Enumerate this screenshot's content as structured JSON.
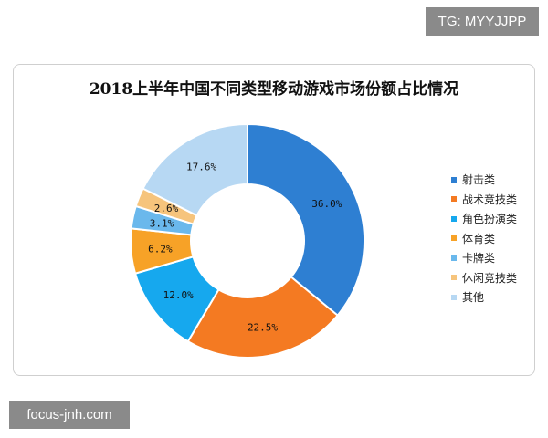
{
  "badge_top": "TG: MYYJJPP",
  "badge_bottom": "focus-jnh.com",
  "chart_data": {
    "type": "pie",
    "title": "2018上半年中国不同类型移动游戏市场份额占比情况",
    "donut": true,
    "legend_position": "right",
    "labels_display": [
      "36.0%",
      "22.5%",
      "12.0%",
      "6.2%",
      "3.1%",
      "2.6%",
      "17.6%"
    ],
    "series": [
      {
        "name": "射击类",
        "value": 36.0,
        "color": "#2e7fd2"
      },
      {
        "name": "战术竞技类",
        "value": 22.5,
        "color": "#f47a22"
      },
      {
        "name": "角色扮演类",
        "value": 12.0,
        "color": "#16a8ee"
      },
      {
        "name": "体育类",
        "value": 6.2,
        "color": "#f7a227"
      },
      {
        "name": "卡牌类",
        "value": 3.1,
        "color": "#6ab8ec"
      },
      {
        "name": "休闲竞技类",
        "value": 2.6,
        "color": "#f6c47c"
      },
      {
        "name": "其他",
        "value": 17.6,
        "color": "#b7d8f3"
      }
    ]
  }
}
